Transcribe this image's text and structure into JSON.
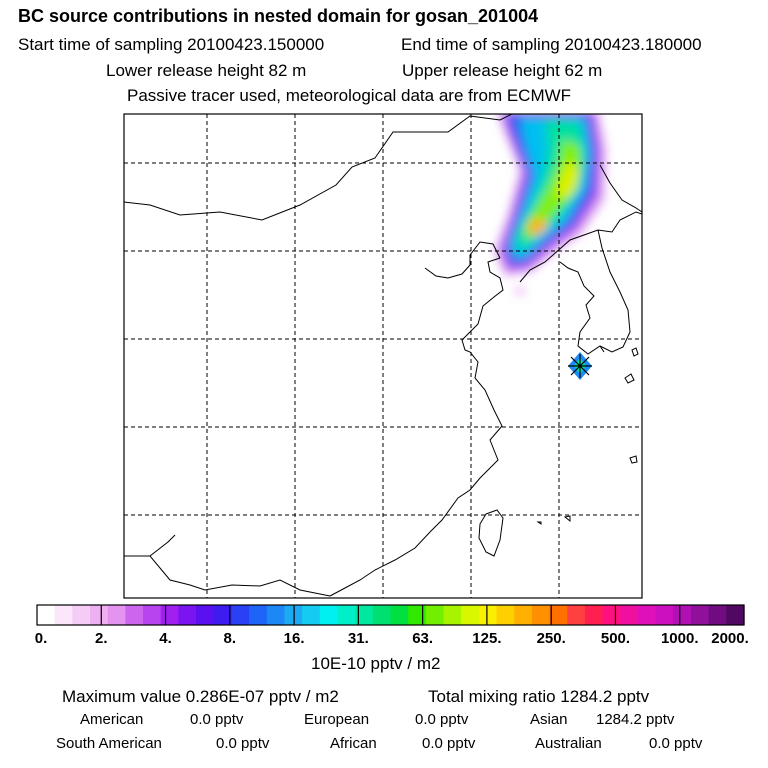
{
  "header": {
    "title": "BC  source contributions in nested domain for gosan_201004",
    "start_label": "Start time of sampling 20100423.150000",
    "end_label": "End time of sampling 20100423.180000",
    "lower_label": "Lower release height   82 m",
    "upper_label": "Upper release height   62 m",
    "note": "Passive tracer used, meteorological data are from ECMWF"
  },
  "colorbar": {
    "labels": [
      "0.",
      "2.",
      "4.",
      "8.",
      "16.",
      "31.",
      "63.",
      "125.",
      "250.",
      "500.",
      "1000.",
      "2000."
    ],
    "unit": "10E-10 pptv / m2",
    "colors": [
      "#ffffff",
      "#fbe6fb",
      "#f5ccf5",
      "#eeb0f0",
      "#e494ee",
      "#cc66ee",
      "#b844f0",
      "#a020f0",
      "#7a14f0",
      "#5a10f0",
      "#3c1cf0",
      "#2a40f4",
      "#1e64f6",
      "#1c88f6",
      "#1caaf4",
      "#14ccf0",
      "#00f0f0",
      "#00eec8",
      "#00e8a0",
      "#00e070",
      "#00e040",
      "#30e800",
      "#70f000",
      "#a8f400",
      "#d8f800",
      "#f8f000",
      "#ffd000",
      "#ffb000",
      "#ff9000",
      "#ff7000",
      "#ff4040",
      "#ff2050",
      "#ff1080",
      "#f010a0",
      "#e010b8",
      "#cc10c0",
      "#b010b4",
      "#90109c",
      "#700c80",
      "#500860"
    ]
  },
  "stats": {
    "max_label": "Maximum value  0.286E-07 pptv / m2",
    "total_label": "Total mixing ratio     1284.2 pptv"
  },
  "regions": [
    {
      "name": "American",
      "value": "0.0 pptv"
    },
    {
      "name": "European",
      "value": "0.0 pptv"
    },
    {
      "name": "Asian",
      "value": "1284.2 pptv"
    },
    {
      "name": "South American",
      "value": "0.0 pptv"
    },
    {
      "name": "African",
      "value": "0.0 pptv"
    },
    {
      "name": "Australian",
      "value": "0.0 pptv"
    }
  ],
  "map": {
    "receptor": "gosan",
    "plume_colors": [
      "#e0a0f0",
      "#a040f0",
      "#2060f0",
      "#00c0f0",
      "#00e0a0",
      "#80f000",
      "#e0f000",
      "#ffb000"
    ]
  }
}
